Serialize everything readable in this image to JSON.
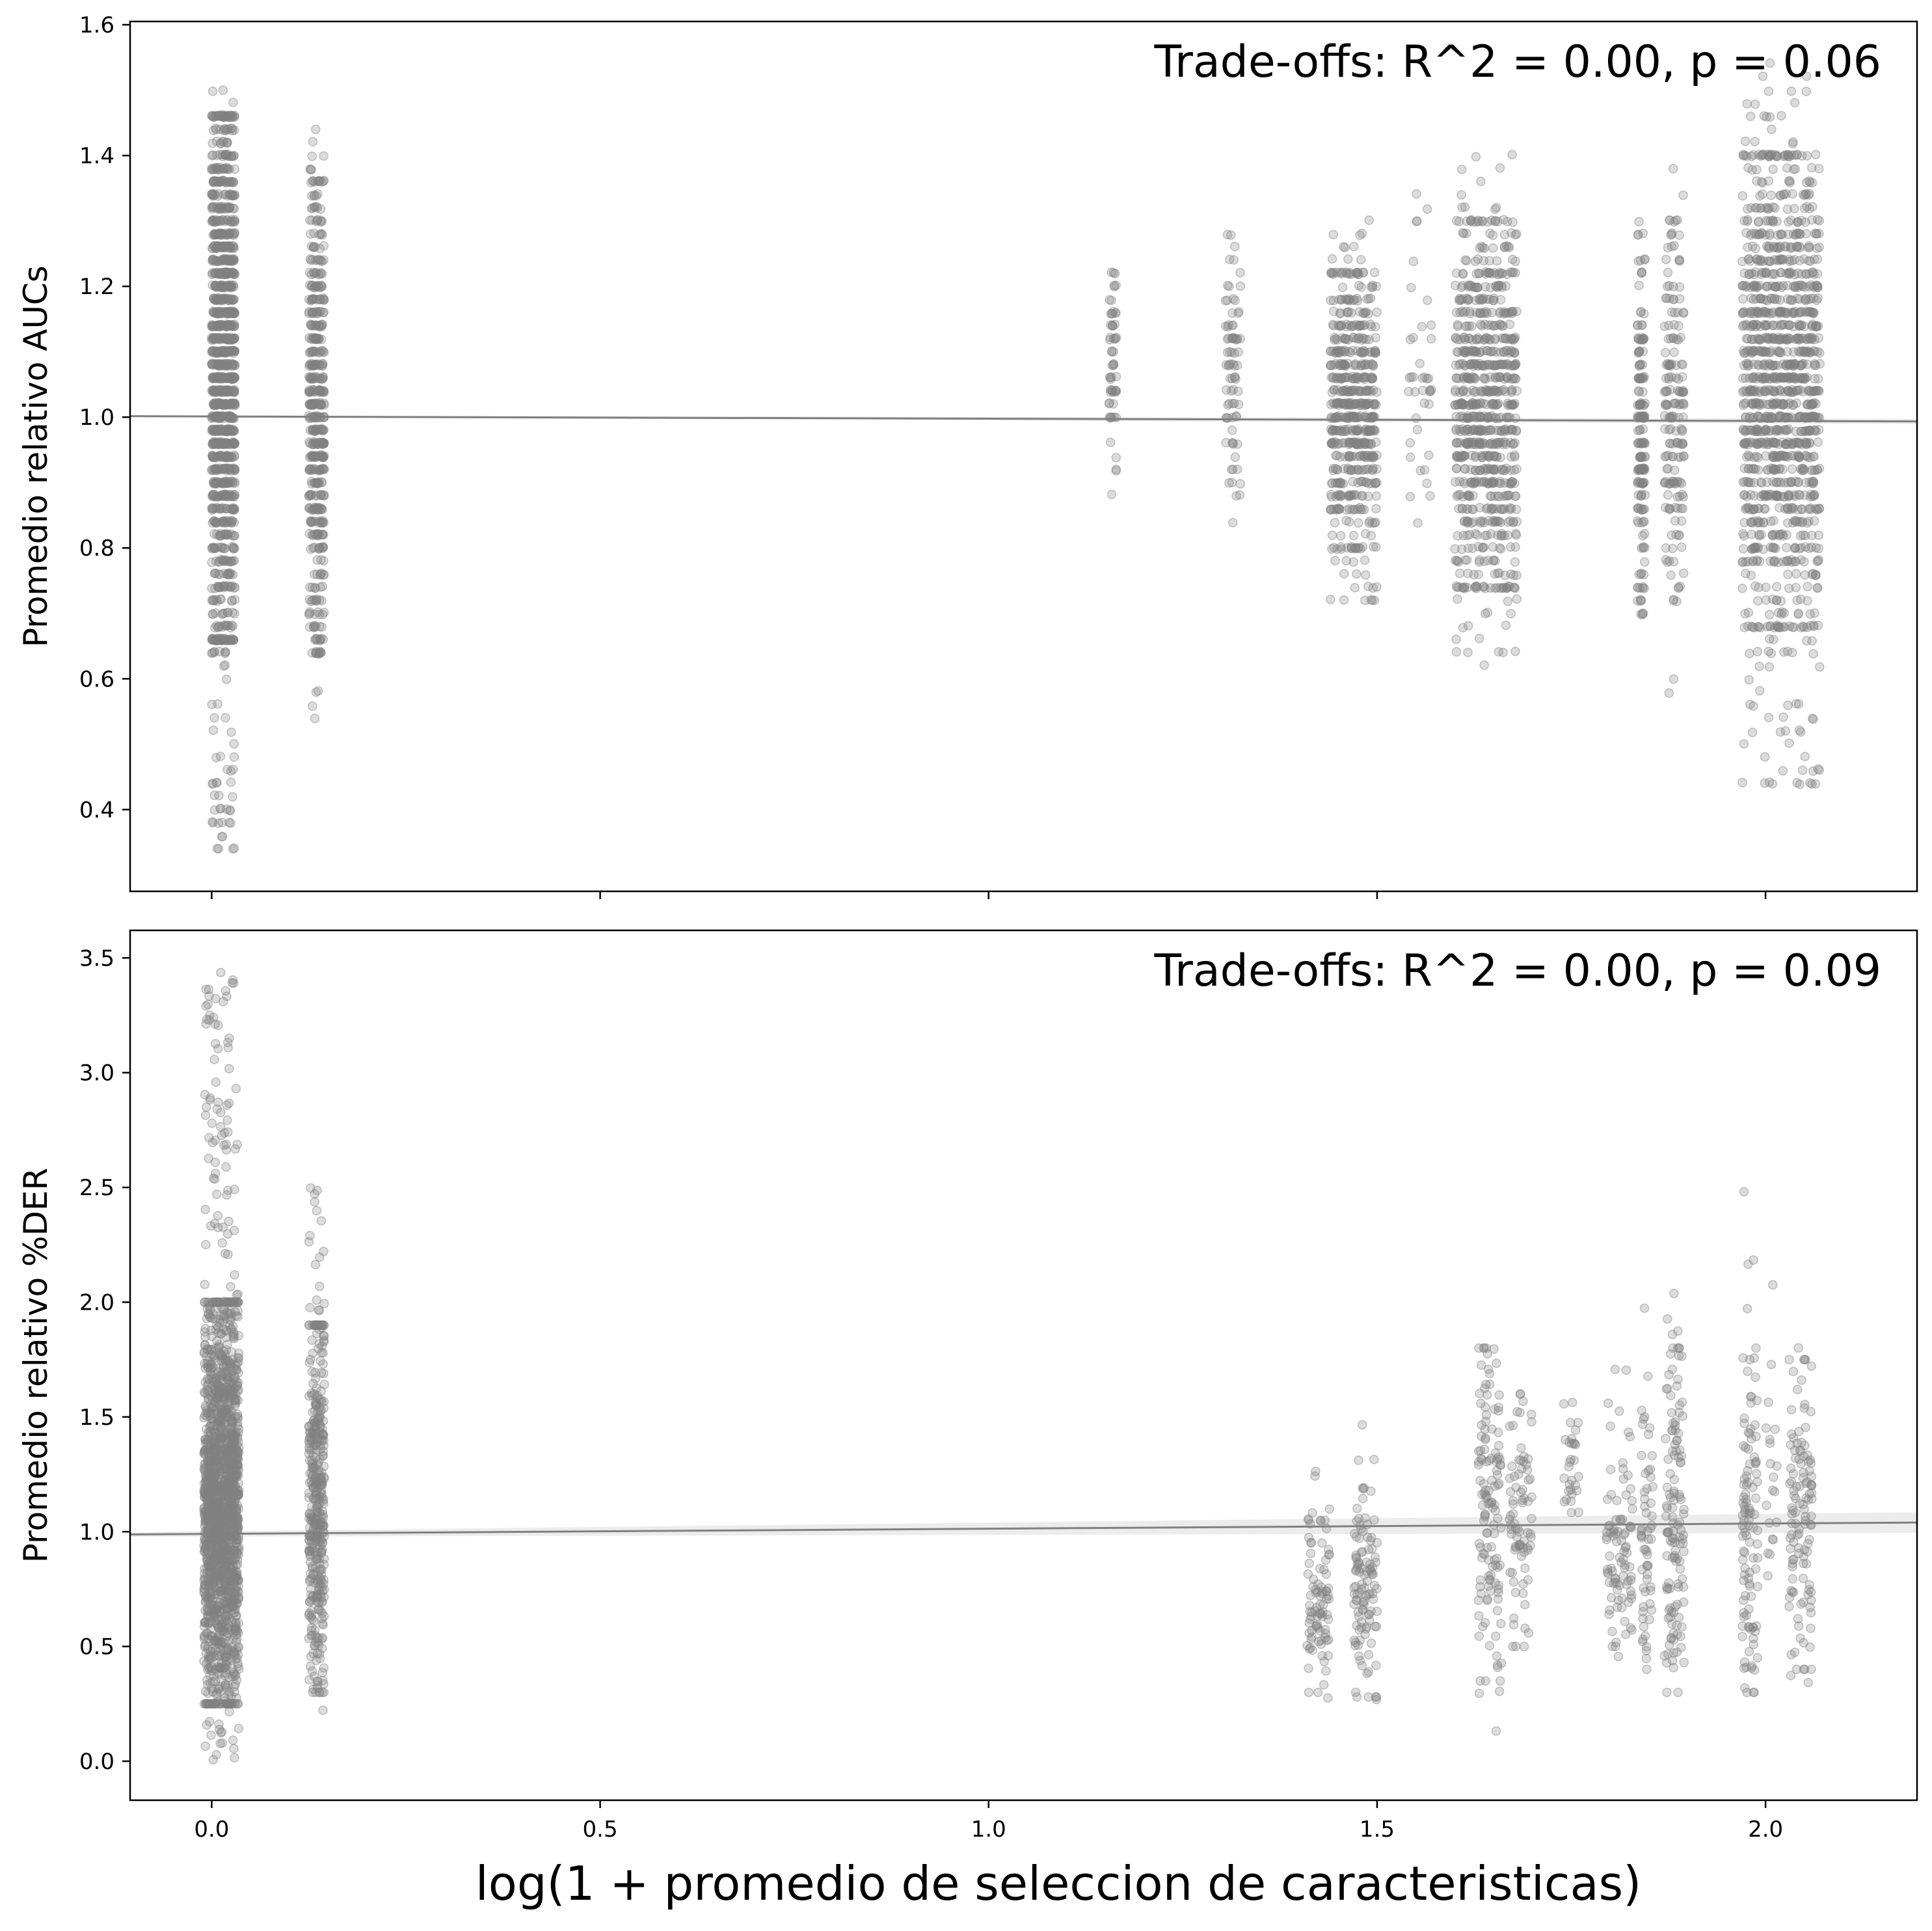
{
  "figure": {
    "xlabel": "log(1 + promedio de seleccion de caracteristicas)"
  },
  "chart_data": [
    {
      "type": "scatter",
      "title": "",
      "annotation": "Trade-offs: R^2 = 0.00, p = 0.06",
      "xlabel": "",
      "ylabel": "Promedio relativo AUCs",
      "xlim": [
        -0.105,
        2.195
      ],
      "ylim": [
        0.275,
        1.605
      ],
      "x_ticks": [
        0.0,
        0.5,
        1.0,
        1.5,
        2.0
      ],
      "x_tick_labels_visible": false,
      "y_ticks": [
        0.4,
        0.6,
        0.8,
        1.0,
        1.2,
        1.4,
        1.6
      ],
      "y_tick_labels": [
        "0.4",
        "0.6",
        "0.8",
        "1.0",
        "1.2",
        "1.4",
        "1.6"
      ],
      "grid": false,
      "point_color": "#808080",
      "point_opacity": 0.28,
      "clusters": [
        {
          "x": [
            0.0,
            0.03
          ],
          "y": [
            0.34,
            1.52
          ],
          "core": [
            0.66,
            1.46
          ],
          "n": 1400
        },
        {
          "x": [
            0.125,
            0.145
          ],
          "y": [
            0.53,
            1.44
          ],
          "core": [
            0.64,
            1.36
          ],
          "n": 520
        },
        {
          "x": [
            1.155,
            1.165
          ],
          "y": [
            0.87,
            1.27
          ],
          "core": [
            0.92,
            1.22
          ],
          "n": 60
        },
        {
          "x": [
            1.305,
            1.325
          ],
          "y": [
            0.76,
            1.36
          ],
          "core": [
            0.84,
            1.28
          ],
          "n": 80
        },
        {
          "x": [
            1.44,
            1.5
          ],
          "y": [
            0.72,
            1.31
          ],
          "core": [
            0.8,
            1.22
          ],
          "n": 600
        },
        {
          "x": [
            1.54,
            1.57
          ],
          "y": [
            0.8,
            1.35
          ],
          "core": [
            0.85,
            1.2
          ],
          "n": 40
        },
        {
          "x": [
            1.6,
            1.68
          ],
          "y": [
            0.62,
            1.42
          ],
          "core": [
            0.74,
            1.3
          ],
          "n": 820
        },
        {
          "x": [
            1.835,
            1.845
          ],
          "y": [
            0.64,
            1.33
          ],
          "core": [
            0.7,
            1.24
          ],
          "n": 180
        },
        {
          "x": [
            1.87,
            1.895
          ],
          "y": [
            0.55,
            1.38
          ],
          "core": [
            0.72,
            1.3
          ],
          "n": 180
        },
        {
          "x": [
            1.97,
            2.07
          ],
          "y": [
            0.43,
            1.55
          ],
          "core": [
            0.68,
            1.4
          ],
          "n": 1300
        }
      ],
      "regression": {
        "x": [
          -0.105,
          2.195
        ],
        "y": [
          1.0015,
          0.9935
        ],
        "ci_halfwidth": [
          0.0015,
          0.004
        ]
      }
    },
    {
      "type": "scatter",
      "title": "",
      "annotation": "Trade-offs: R^2 = 0.00, p = 0.09",
      "xlabel": "log(1 + promedio de seleccion de caracteristicas)",
      "ylabel": "Promedio relativo %DER",
      "xlim": [
        -0.105,
        2.195
      ],
      "ylim": [
        -0.17,
        3.62
      ],
      "x_ticks": [
        0.0,
        0.5,
        1.0,
        1.5,
        2.0
      ],
      "x_tick_labels": [
        "0.0",
        "0.5",
        "1.0",
        "1.5",
        "2.0"
      ],
      "y_ticks": [
        0.0,
        0.5,
        1.0,
        1.5,
        2.0,
        2.5,
        3.0,
        3.5
      ],
      "y_tick_labels": [
        "0.0",
        "0.5",
        "1.0",
        "1.5",
        "2.0",
        "2.5",
        "3.0",
        "3.5"
      ],
      "grid": false,
      "point_color": "#808080",
      "point_opacity": 0.28,
      "clusters": [
        {
          "x": [
            -0.01,
            0.035
          ],
          "y": [
            0.0,
            3.44
          ],
          "core": [
            0.25,
            2.0
          ],
          "n": 1800
        },
        {
          "x": [
            0.125,
            0.145
          ],
          "y": [
            0.14,
            2.7
          ],
          "core": [
            0.3,
            1.9
          ],
          "n": 420
        },
        {
          "x": [
            1.41,
            1.44
          ],
          "y": [
            0.25,
            1.28
          ],
          "core": [
            0.3,
            1.05
          ],
          "n": 90
        },
        {
          "x": [
            1.47,
            1.5
          ],
          "y": [
            0.24,
            1.6
          ],
          "core": [
            0.28,
            1.2
          ],
          "n": 110
        },
        {
          "x": [
            1.63,
            1.66
          ],
          "y": [
            0.08,
            2.1
          ],
          "core": [
            0.35,
            1.8
          ],
          "n": 130
        },
        {
          "x": [
            1.67,
            1.7
          ],
          "y": [
            0.2,
            1.85
          ],
          "core": [
            0.5,
            1.6
          ],
          "n": 80
        },
        {
          "x": [
            1.74,
            1.76
          ],
          "y": [
            1.0,
            1.7
          ],
          "core": [
            1.05,
            1.6
          ],
          "n": 30
        },
        {
          "x": [
            1.795,
            1.83
          ],
          "y": [
            0.4,
            1.8
          ],
          "core": [
            0.5,
            1.3
          ],
          "n": 90
        },
        {
          "x": [
            1.84,
            1.855
          ],
          "y": [
            0.25,
            2.08
          ],
          "core": [
            0.4,
            1.5
          ],
          "n": 60
        },
        {
          "x": [
            1.87,
            1.895
          ],
          "y": [
            0.19,
            2.04
          ],
          "core": [
            0.3,
            1.8
          ],
          "n": 130
        },
        {
          "x": [
            1.97,
            1.99
          ],
          "y": [
            0.2,
            2.58
          ],
          "core": [
            0.3,
            1.8
          ],
          "n": 110
        },
        {
          "x": [
            2.0,
            2.015
          ],
          "y": [
            0.6,
            2.56
          ],
          "core": [
            0.7,
            1.6
          ],
          "n": 20
        },
        {
          "x": [
            2.03,
            2.06
          ],
          "y": [
            0.3,
            1.91
          ],
          "core": [
            0.4,
            1.75
          ],
          "n": 120
        }
      ],
      "regression": {
        "x": [
          -0.105,
          2.195
        ],
        "y": [
          0.988,
          1.04
        ],
        "ci_halfwidth": [
          0.01,
          0.045
        ]
      }
    }
  ]
}
